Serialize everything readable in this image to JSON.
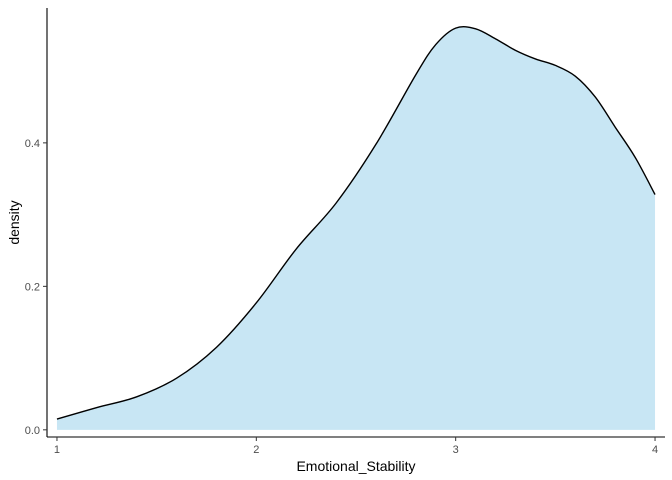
{
  "chart_data": {
    "type": "area",
    "title": "",
    "xlabel": "Emotional_Stability",
    "ylabel": "density",
    "xlim": [
      0.95,
      4.05
    ],
    "ylim": [
      -0.01,
      0.588
    ],
    "x_ticks": [
      1,
      2,
      3,
      4
    ],
    "x_tick_labels": [
      "1",
      "2",
      "3",
      "4"
    ],
    "y_ticks": [
      0.0,
      0.2,
      0.4
    ],
    "y_tick_labels": [
      "0.0",
      "0.2",
      "0.4"
    ],
    "grid": false,
    "legend": "none",
    "fill_color": "#c8e6f4",
    "line_color": "#000000",
    "series": [
      {
        "x": [
          1.0,
          1.2,
          1.4,
          1.6,
          1.8,
          2.0,
          2.2,
          2.4,
          2.6,
          2.8,
          2.9,
          3.0,
          3.1,
          3.2,
          3.3,
          3.4,
          3.5,
          3.6,
          3.7,
          3.8,
          3.9,
          4.0
        ],
        "y": [
          0.015,
          0.031,
          0.046,
          0.072,
          0.115,
          0.177,
          0.252,
          0.316,
          0.398,
          0.495,
          0.537,
          0.56,
          0.559,
          0.545,
          0.529,
          0.517,
          0.508,
          0.493,
          0.464,
          0.422,
          0.38,
          0.328
        ]
      }
    ]
  }
}
